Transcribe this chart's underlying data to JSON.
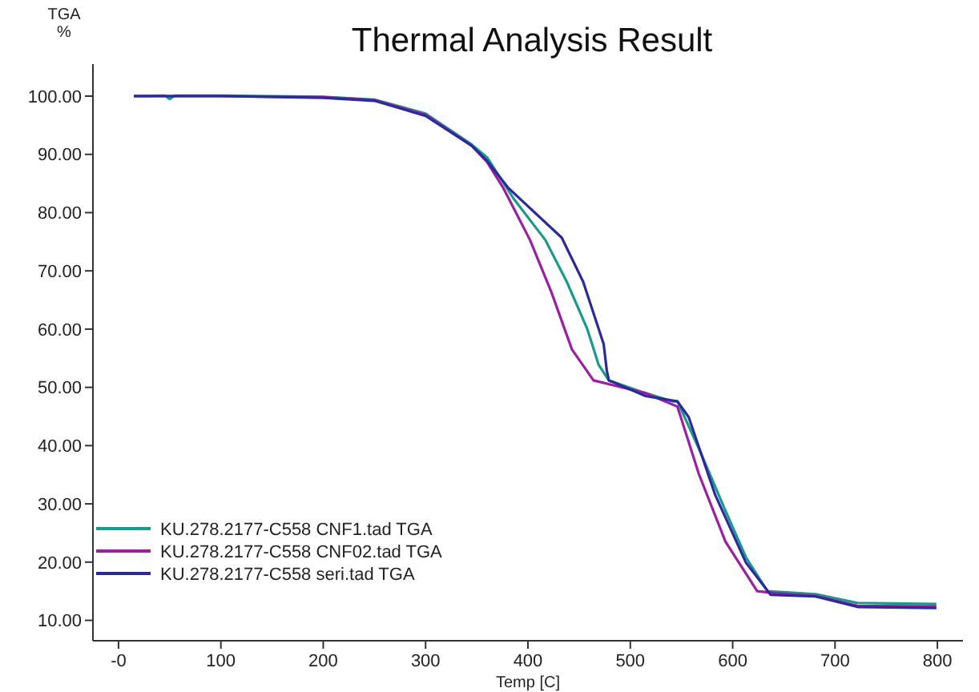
{
  "chart_data": {
    "type": "line",
    "title": "Thermal Analysis Result",
    "xlabel": "Temp [C]",
    "ylabel": "TGA %",
    "xlim": [
      -25,
      825
    ],
    "ylim": [
      6.5,
      105.5
    ],
    "xticks": [
      {
        "value": 0,
        "label": "-0"
      },
      100,
      200,
      300,
      400,
      500,
      600,
      700,
      800
    ],
    "yticks": [
      {
        "value": 10,
        "label": "10.00"
      },
      {
        "value": 20,
        "label": "20.00"
      },
      {
        "value": 30,
        "label": "30.00"
      },
      {
        "value": 40,
        "label": "40.00"
      },
      {
        "value": 50,
        "label": "50.00"
      },
      {
        "value": 60,
        "label": "60.00"
      },
      {
        "value": 70,
        "label": "70.00"
      },
      {
        "value": 80,
        "label": "80.00"
      },
      {
        "value": 90,
        "label": "90.00"
      },
      {
        "value": 100,
        "label": "100.00"
      }
    ],
    "grid": false,
    "legend": "bottom left",
    "marker": "none",
    "line_style": "solid",
    "series": [
      {
        "name": "KU.278.2177-C558 CNF1.tad TGA",
        "color": "#1a9a8c",
        "x": [
          15,
          45,
          50,
          55,
          100,
          200,
          250,
          300,
          345,
          360,
          386,
          417,
          438,
          458,
          469,
          479,
          510,
          541,
          546,
          567,
          593,
          613,
          634,
          681,
          722,
          799
        ],
        "values": [
          100,
          100.1,
          99.5,
          100.1,
          100.1,
          99.9,
          99.4,
          97,
          91.7,
          89.5,
          82.4,
          75.3,
          68.1,
          60,
          53.9,
          51.2,
          49.3,
          47.6,
          47.6,
          39.5,
          28.8,
          20.8,
          15,
          14.5,
          13,
          12.8
        ]
      },
      {
        "name": "KU.278.2177-C558 CNF02.tad TGA",
        "color": "#9b1fa0",
        "x": [
          15,
          100,
          200,
          250,
          300,
          345,
          360,
          376,
          402,
          423,
          443,
          464,
          485,
          515,
          546,
          567,
          593,
          624,
          640,
          681,
          722,
          799
        ],
        "values": [
          100,
          100,
          99.8,
          99.3,
          96.8,
          91.5,
          88.7,
          84.2,
          75.3,
          66.3,
          56.5,
          51.2,
          50.3,
          49,
          46.7,
          35.1,
          23.5,
          15,
          14.7,
          14.2,
          12.5,
          12.4
        ]
      },
      {
        "name": "KU.278.2177-C558 seri.tad TGA",
        "color": "#2b2a9a",
        "x": [
          15,
          100,
          200,
          250,
          300,
          345,
          360,
          381,
          433,
          454,
          474,
          477,
          479,
          515,
          546,
          557,
          583,
          613,
          637,
          681,
          722,
          799
        ],
        "values": [
          100,
          100,
          99.7,
          99.2,
          96.6,
          91.5,
          88.9,
          84.2,
          75.7,
          68.1,
          57.4,
          52.9,
          51.2,
          48.5,
          47.6,
          44.9,
          31.5,
          19.9,
          14.4,
          14.1,
          12.3,
          12.1
        ]
      }
    ]
  }
}
